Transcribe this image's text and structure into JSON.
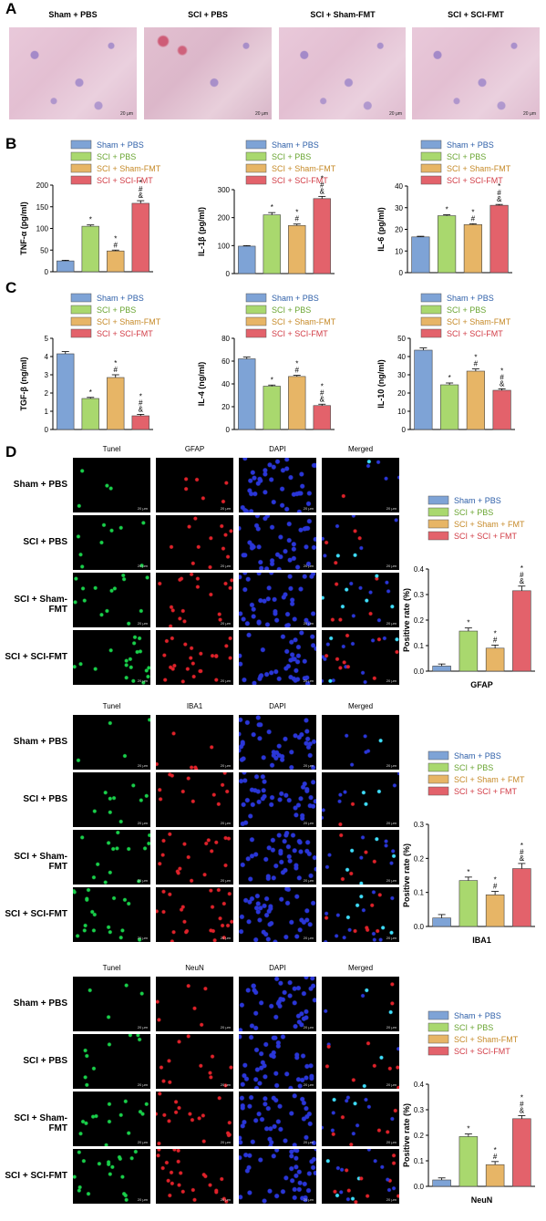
{
  "panel_labels": {
    "a": "A",
    "b": "B",
    "c": "C",
    "d": "D"
  },
  "panel_a": {
    "titles": [
      "Sham + PBS",
      "SCI + PBS",
      "SCI + Sham-FMT",
      "SCI + SCI-FMT"
    ],
    "scale": "20 μm"
  },
  "colors": {
    "sham_pbs": "#7ea3d6",
    "sci_pbs": "#a9d86e",
    "sci_sham_fmt": "#e7b566",
    "sci_sci_fmt": "#e3626b"
  },
  "legend_labels_hyphen": [
    "Sham + PBS",
    "SCI + PBS",
    "SCI + Sham-FMT",
    "SCI + SCI-FMT"
  ],
  "legend_labels_spaced": [
    "Sham + PBS",
    "SCI + PBS",
    "SCI + Sham + FMT",
    "SCI + SCI + FMT"
  ],
  "legend_label_colors": [
    "#2e5fa8",
    "#6aa532",
    "#c68a28",
    "#d23c46"
  ],
  "panel_d": {
    "row_labels": [
      "Sham + PBS",
      "SCI + PBS",
      "SCI + Sham-FMT",
      "SCI + SCI-FMT"
    ],
    "blocks": [
      {
        "cols": [
          "Tunel",
          "GFAP",
          "DAPI",
          "Merged"
        ]
      },
      {
        "cols": [
          "Tunel",
          "IBA1",
          "DAPI",
          "Merged"
        ]
      },
      {
        "cols": [
          "Tunel",
          "NeuN",
          "DAPI",
          "Merged"
        ]
      }
    ],
    "scale": "20 μm"
  },
  "chart_data": [
    {
      "id": "tnf",
      "type": "bar",
      "ylabel": "TNF-α (pg/ml)",
      "ylim": [
        0,
        200
      ],
      "yticks": [
        0,
        50,
        100,
        150,
        200
      ],
      "values": [
        25,
        105,
        48,
        158
      ],
      "errors": [
        1.5,
        3,
        2,
        6
      ],
      "annotations": [
        "",
        "*",
        "*\n#",
        "*\n#\n&"
      ],
      "legend": "hyphen"
    },
    {
      "id": "il1b",
      "type": "bar",
      "ylabel": "IL-1β (pg/ml)",
      "ylim": [
        0,
        300
      ],
      "yticks": [
        0,
        100,
        200,
        300
      ],
      "values": [
        98,
        210,
        172,
        268
      ],
      "errors": [
        2,
        8,
        5,
        8
      ],
      "annotations": [
        "",
        "*",
        "*\n#",
        "*\n#\n&"
      ],
      "legend": "hyphen"
    },
    {
      "id": "il6",
      "type": "bar",
      "ylabel": "IL-6 (pg/ml)",
      "ylim": [
        0,
        40
      ],
      "yticks": [
        0,
        10,
        20,
        30,
        40
      ],
      "values": [
        16.5,
        26.3,
        22.2,
        31.1
      ],
      "errors": [
        0.3,
        0.4,
        0.4,
        0.4
      ],
      "annotations": [
        "",
        "*",
        "*\n#",
        "*\n#\n&"
      ],
      "legend": "hyphen"
    },
    {
      "id": "tgfb",
      "type": "bar",
      "ylabel": "TGF-β (ng/ml)",
      "ylim": [
        0,
        5
      ],
      "yticks": [
        0,
        1,
        2,
        3,
        4,
        5
      ],
      "values": [
        4.15,
        1.7,
        2.85,
        0.75
      ],
      "errors": [
        0.12,
        0.06,
        0.15,
        0.08
      ],
      "annotations": [
        "",
        "*",
        "*\n#",
        "*\n#\n&"
      ],
      "legend": "hyphen"
    },
    {
      "id": "il4",
      "type": "bar",
      "ylabel": "IL-4 (ng/ml)",
      "ylim": [
        0,
        80
      ],
      "yticks": [
        0,
        20,
        40,
        60,
        80
      ],
      "values": [
        62,
        38,
        46.5,
        21
      ],
      "errors": [
        1.5,
        1,
        1,
        1.2
      ],
      "annotations": [
        "",
        "*",
        "*\n#",
        "*\n#\n&"
      ],
      "legend": "hyphen"
    },
    {
      "id": "il10",
      "type": "bar",
      "ylabel": "IL-10 (ng/ml)",
      "ylim": [
        0,
        50
      ],
      "yticks": [
        0,
        10,
        20,
        30,
        40,
        50
      ],
      "values": [
        43.5,
        24.5,
        32,
        21.5
      ],
      "errors": [
        1.2,
        1,
        1.2,
        0.8
      ],
      "annotations": [
        "",
        "*",
        "*\n#",
        "*\n#\n&"
      ],
      "legend": "hyphen"
    },
    {
      "id": "gfap",
      "type": "bar",
      "ylabel": "Positive rate (%)",
      "xlabel": "GFAP",
      "ylim": [
        0,
        0.4
      ],
      "yticks": [
        0.0,
        0.1,
        0.2,
        0.3,
        0.4
      ],
      "values": [
        0.02,
        0.157,
        0.09,
        0.315
      ],
      "errors": [
        0.008,
        0.012,
        0.012,
        0.018
      ],
      "annotations": [
        "",
        "*",
        "*\n#",
        "*\n#\n&"
      ],
      "legend": "spaced"
    },
    {
      "id": "iba1",
      "type": "bar",
      "ylabel": "Positive rate (%)",
      "xlabel": "IBA1",
      "ylim": [
        0,
        0.3
      ],
      "yticks": [
        0.0,
        0.1,
        0.2,
        0.3
      ],
      "values": [
        0.025,
        0.135,
        0.093,
        0.17
      ],
      "errors": [
        0.01,
        0.01,
        0.01,
        0.015
      ],
      "annotations": [
        "",
        "*",
        "*\n#",
        "*\n#\n&"
      ],
      "legend": "spaced"
    },
    {
      "id": "neun",
      "type": "bar",
      "ylabel": "Positive rate (%)",
      "xlabel": "NeuN",
      "ylim": [
        0,
        0.4
      ],
      "yticks": [
        0.0,
        0.1,
        0.2,
        0.3,
        0.4
      ],
      "values": [
        0.025,
        0.195,
        0.085,
        0.265
      ],
      "errors": [
        0.008,
        0.01,
        0.012,
        0.012
      ],
      "annotations": [
        "",
        "*",
        "*\n#",
        "*\n#\n&"
      ],
      "legend": "hyphen"
    }
  ]
}
